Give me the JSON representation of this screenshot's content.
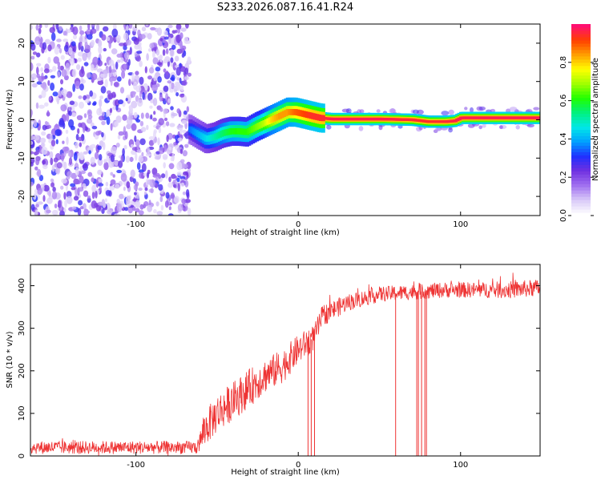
{
  "page_title": "S233.2026.087.16.41.R24",
  "chart_data": [
    {
      "type": "heatmap",
      "title": "S233.2026.087.16.41.R24",
      "xlabel": "Height of straight line (km)",
      "ylabel": "Frequency (Hz)",
      "xlim": [
        -165,
        149
      ],
      "ylim": [
        -25,
        25
      ],
      "xticks": [
        -100,
        0,
        100
      ],
      "yticks": [
        -20,
        -10,
        0,
        10,
        20
      ],
      "xtick_labels": [
        "-100",
        "0",
        "100"
      ],
      "ytick_labels": [
        "-20",
        "-10",
        "0",
        "10",
        "20"
      ],
      "noise_region_x": [
        -165,
        -67
      ],
      "signal_track": {
        "x": [
          -67,
          -62,
          -57,
          -52,
          -47,
          -42,
          -37,
          -32,
          -27,
          -22,
          -17,
          -12,
          -7,
          -2,
          3,
          8,
          13,
          20,
          30,
          40,
          50,
          60,
          70,
          80,
          90,
          96,
          100,
          110,
          120,
          130,
          140,
          149
        ],
        "freq": [
          -2.5,
          -3.8,
          -5.0,
          -4.5,
          -3.5,
          -3.0,
          -3.0,
          -3.2,
          -2.0,
          -1.0,
          0.0,
          1.0,
          2.0,
          2.0,
          1.5,
          1.0,
          0.5,
          0.2,
          0.2,
          0.2,
          0.2,
          0.1,
          0.0,
          -0.5,
          -0.5,
          -0.3,
          0.5,
          0.5,
          0.5,
          0.5,
          0.5,
          0.5
        ],
        "amplitude": [
          0.35,
          0.4,
          0.45,
          0.5,
          0.55,
          0.6,
          0.62,
          0.62,
          0.66,
          0.7,
          0.8,
          0.85,
          0.85,
          0.9,
          0.92,
          0.95,
          0.95,
          0.98,
          0.98,
          0.98,
          0.98,
          0.97,
          0.96,
          0.95,
          0.96,
          0.97,
          0.98,
          0.98,
          0.98,
          0.98,
          0.98,
          0.98
        ]
      },
      "colorbar": {
        "label": "Normalized spectral amplitude",
        "range": [
          0,
          1
        ],
        "ticks": [
          0.0,
          0.2,
          0.4,
          0.6,
          0.8
        ],
        "tick_labels": [
          "0.0",
          "0.2",
          "0.4",
          "0.6",
          "0.8"
        ],
        "colors": [
          "#ffffff",
          "#d8c8f8",
          "#a070f0",
          "#7030e0",
          "#2030ff",
          "#00a0ff",
          "#00e8e8",
          "#00f080",
          "#20ff00",
          "#a0ff00",
          "#ffff00",
          "#ffa000",
          "#ff4000",
          "#ff1070"
        ]
      }
    },
    {
      "type": "line",
      "xlabel": "Height of straight line (km)",
      "ylabel": "SNR (10 * v/v)",
      "xlim": [
        -165,
        149
      ],
      "ylim": [
        0,
        450
      ],
      "xticks": [
        -100,
        0,
        100
      ],
      "yticks": [
        0,
        100,
        200,
        300,
        400
      ],
      "xtick_labels": [
        "-100",
        "0",
        "100"
      ],
      "ytick_labels": [
        "0",
        "100",
        "200",
        "300",
        "400"
      ],
      "series": [
        {
          "name": "SNR",
          "color": "#ee3333",
          "trend_x": [
            -165,
            -62,
            -58,
            -50,
            -40,
            -30,
            -20,
            -10,
            0,
            10,
            15,
            30,
            50,
            70,
            90,
            110,
            130,
            149
          ],
          "trend_y": [
            20,
            20,
            60,
            100,
            130,
            160,
            190,
            210,
            250,
            280,
            330,
            360,
            380,
            385,
            390,
            390,
            390,
            395
          ],
          "noise_amplitude": [
            15,
            15,
            40,
            45,
            45,
            45,
            40,
            40,
            35,
            30,
            25,
            20,
            18,
            18,
            18,
            18,
            20,
            20
          ],
          "dropouts": [
            6,
            8,
            10,
            60,
            73,
            74,
            76,
            78,
            79
          ]
        }
      ]
    }
  ]
}
